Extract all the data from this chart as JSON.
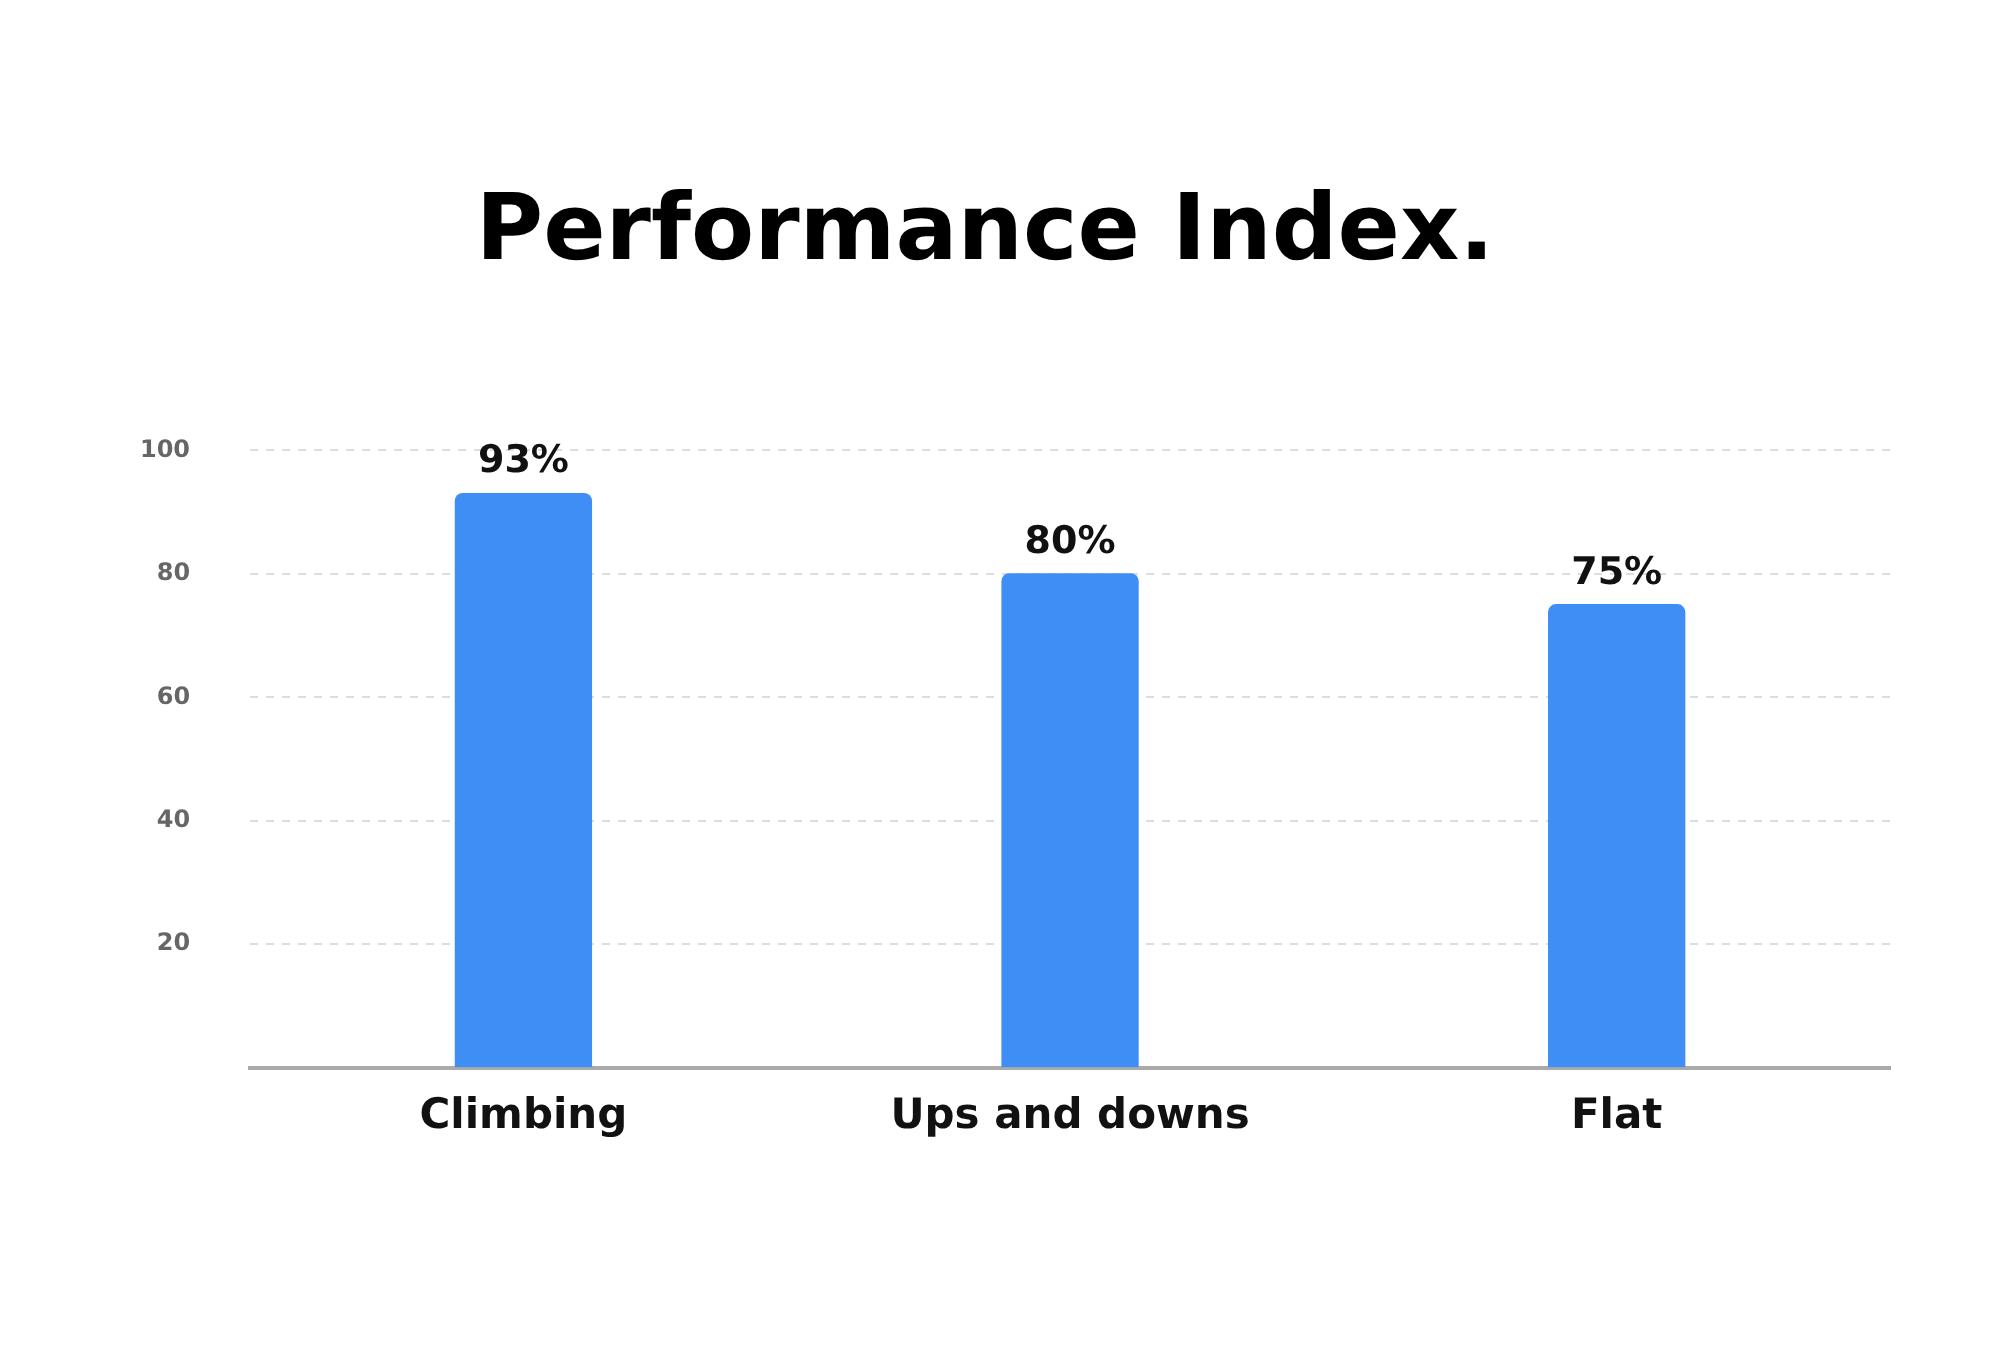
{
  "chart_data": {
    "type": "bar",
    "title": "Performance Index.",
    "categories": [
      "Climbing",
      "Ups and downs",
      "Flat"
    ],
    "values": [
      93,
      80,
      75
    ],
    "value_labels": [
      "93%",
      "80%",
      "75%"
    ],
    "color": "#3f8ef5",
    "ylim": [
      0,
      100
    ],
    "yticks": [
      {
        "value": 0,
        "label": null
      },
      20,
      40,
      60,
      80,
      100
    ],
    "grid": "y",
    "legend": false
  }
}
